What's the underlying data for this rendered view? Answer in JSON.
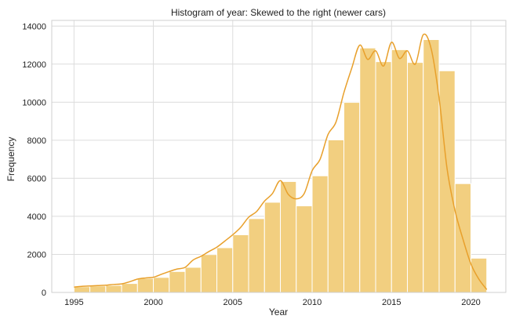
{
  "chart_data": {
    "type": "bar",
    "title": "Histogram of year: Skewed to the right (newer cars)",
    "xlabel": "Year",
    "ylabel": "Frequency",
    "x_ticks": [
      1995,
      2000,
      2005,
      2010,
      2015,
      2020
    ],
    "y_ticks": [
      0,
      2000,
      4000,
      6000,
      8000,
      10000,
      12000,
      14000
    ],
    "xlim": [
      1993.6,
      2022.2
    ],
    "ylim": [
      0,
      14300
    ],
    "bar_color": "#f2cf80",
    "bar_edge_color": "#ffffff",
    "kde_color": "#e8a02c",
    "grid": true,
    "bins": [
      {
        "start": 1995,
        "end": 1996,
        "value": 300
      },
      {
        "start": 1996,
        "end": 1997,
        "value": 340
      },
      {
        "start": 1997,
        "end": 1998,
        "value": 370
      },
      {
        "start": 1998,
        "end": 1999,
        "value": 470
      },
      {
        "start": 1999,
        "end": 2000,
        "value": 740
      },
      {
        "start": 2000,
        "end": 2001,
        "value": 790
      },
      {
        "start": 2001,
        "end": 2002,
        "value": 1100
      },
      {
        "start": 2002,
        "end": 2003,
        "value": 1320
      },
      {
        "start": 2003,
        "end": 2004,
        "value": 1990
      },
      {
        "start": 2004,
        "end": 2005,
        "value": 2350
      },
      {
        "start": 2005,
        "end": 2006,
        "value": 3030
      },
      {
        "start": 2006,
        "end": 2007,
        "value": 3880
      },
      {
        "start": 2007,
        "end": 2008,
        "value": 4740
      },
      {
        "start": 2008,
        "end": 2009,
        "value": 5830
      },
      {
        "start": 2009,
        "end": 2010,
        "value": 4550
      },
      {
        "start": 2010,
        "end": 2011,
        "value": 6130
      },
      {
        "start": 2011,
        "end": 2012,
        "value": 8020
      },
      {
        "start": 2012,
        "end": 2013,
        "value": 9990
      },
      {
        "start": 2013,
        "end": 2014,
        "value": 12850
      },
      {
        "start": 2014,
        "end": 2015,
        "value": 12130
      },
      {
        "start": 2015,
        "end": 2016,
        "value": 12760
      },
      {
        "start": 2016,
        "end": 2017,
        "value": 12090
      },
      {
        "start": 2017,
        "end": 2018,
        "value": 13290
      },
      {
        "start": 2018,
        "end": 2019,
        "value": 11650
      },
      {
        "start": 2019,
        "end": 2020,
        "value": 5720
      },
      {
        "start": 2020,
        "end": 2021,
        "value": 1800
      }
    ],
    "kde": {
      "x": [
        1995,
        1995.5,
        1996,
        1996.5,
        1997,
        1997.5,
        1998,
        1998.5,
        1999,
        1999.5,
        2000,
        2000.5,
        2001,
        2001.5,
        2002,
        2002.5,
        2003,
        2003.5,
        2004,
        2004.5,
        2005,
        2005.5,
        2006,
        2006.5,
        2007,
        2007.5,
        2008,
        2008.5,
        2009,
        2009.5,
        2010,
        2010.5,
        2011,
        2011.5,
        2012,
        2012.5,
        2013,
        2013.5,
        2014,
        2014.5,
        2015,
        2015.5,
        2016,
        2016.5,
        2017,
        2017.5,
        2018,
        2018.5,
        2019,
        2019.5,
        2020,
        2020.5,
        2021
      ],
      "y": [
        280,
        320,
        340,
        360,
        380,
        420,
        450,
        560,
        700,
        760,
        800,
        950,
        1100,
        1230,
        1320,
        1700,
        1900,
        2150,
        2380,
        2700,
        3030,
        3420,
        3950,
        4250,
        4800,
        5200,
        5880,
        5150,
        4920,
        5200,
        6400,
        7000,
        8300,
        8950,
        10500,
        11800,
        13000,
        12250,
        12700,
        11900,
        13150,
        12300,
        12700,
        12000,
        13550,
        12800,
        10200,
        6500,
        4300,
        2800,
        1500,
        700,
        150
      ]
    }
  }
}
